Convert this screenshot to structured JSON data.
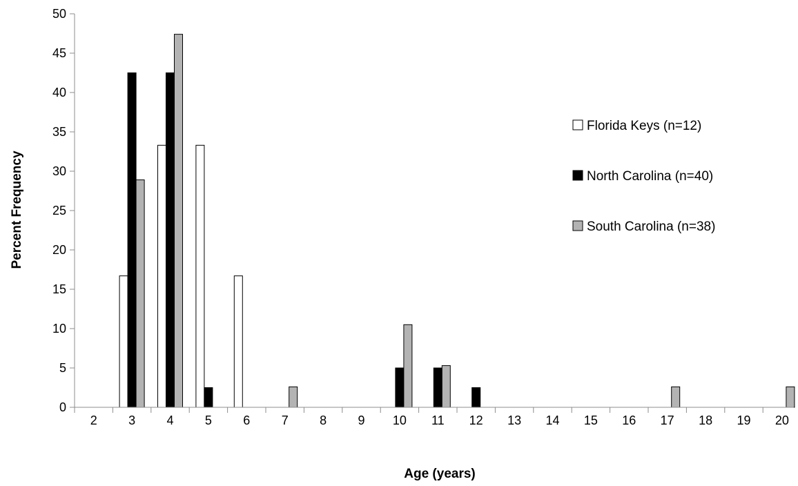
{
  "chart_data": {
    "type": "bar",
    "xlabel": "Age (years)",
    "ylabel": "Percent Frequency",
    "categories": [
      "2",
      "3",
      "4",
      "5",
      "6",
      "7",
      "8",
      "9",
      "10",
      "11",
      "12",
      "13",
      "14",
      "15",
      "16",
      "17",
      "18",
      "19",
      "20"
    ],
    "ylim": [
      0,
      50
    ],
    "yticks": [
      0,
      5,
      10,
      15,
      20,
      25,
      30,
      35,
      40,
      45,
      50
    ],
    "grid": false,
    "legend_position": "right",
    "series": [
      {
        "name": "Florida Keys (n=12)",
        "color": "#ffffff",
        "values": [
          0,
          16.7,
          33.3,
          33.3,
          16.7,
          0,
          0,
          0,
          0,
          0,
          0,
          0,
          0,
          0,
          0,
          0,
          0,
          0,
          0
        ]
      },
      {
        "name": "North Carolina (n=40)",
        "color": "#000000",
        "values": [
          0,
          42.5,
          42.5,
          2.5,
          0,
          0,
          0,
          0,
          5,
          5,
          2.5,
          0,
          0,
          0,
          0,
          0,
          0,
          0,
          0
        ]
      },
      {
        "name": "South Carolina (n=38)",
        "color": "#b3b3b3",
        "values": [
          0,
          28.9,
          47.4,
          0,
          0,
          2.6,
          0,
          0,
          10.5,
          5.3,
          0,
          0,
          0,
          0,
          0,
          2.6,
          0,
          0,
          2.6
        ]
      }
    ]
  }
}
